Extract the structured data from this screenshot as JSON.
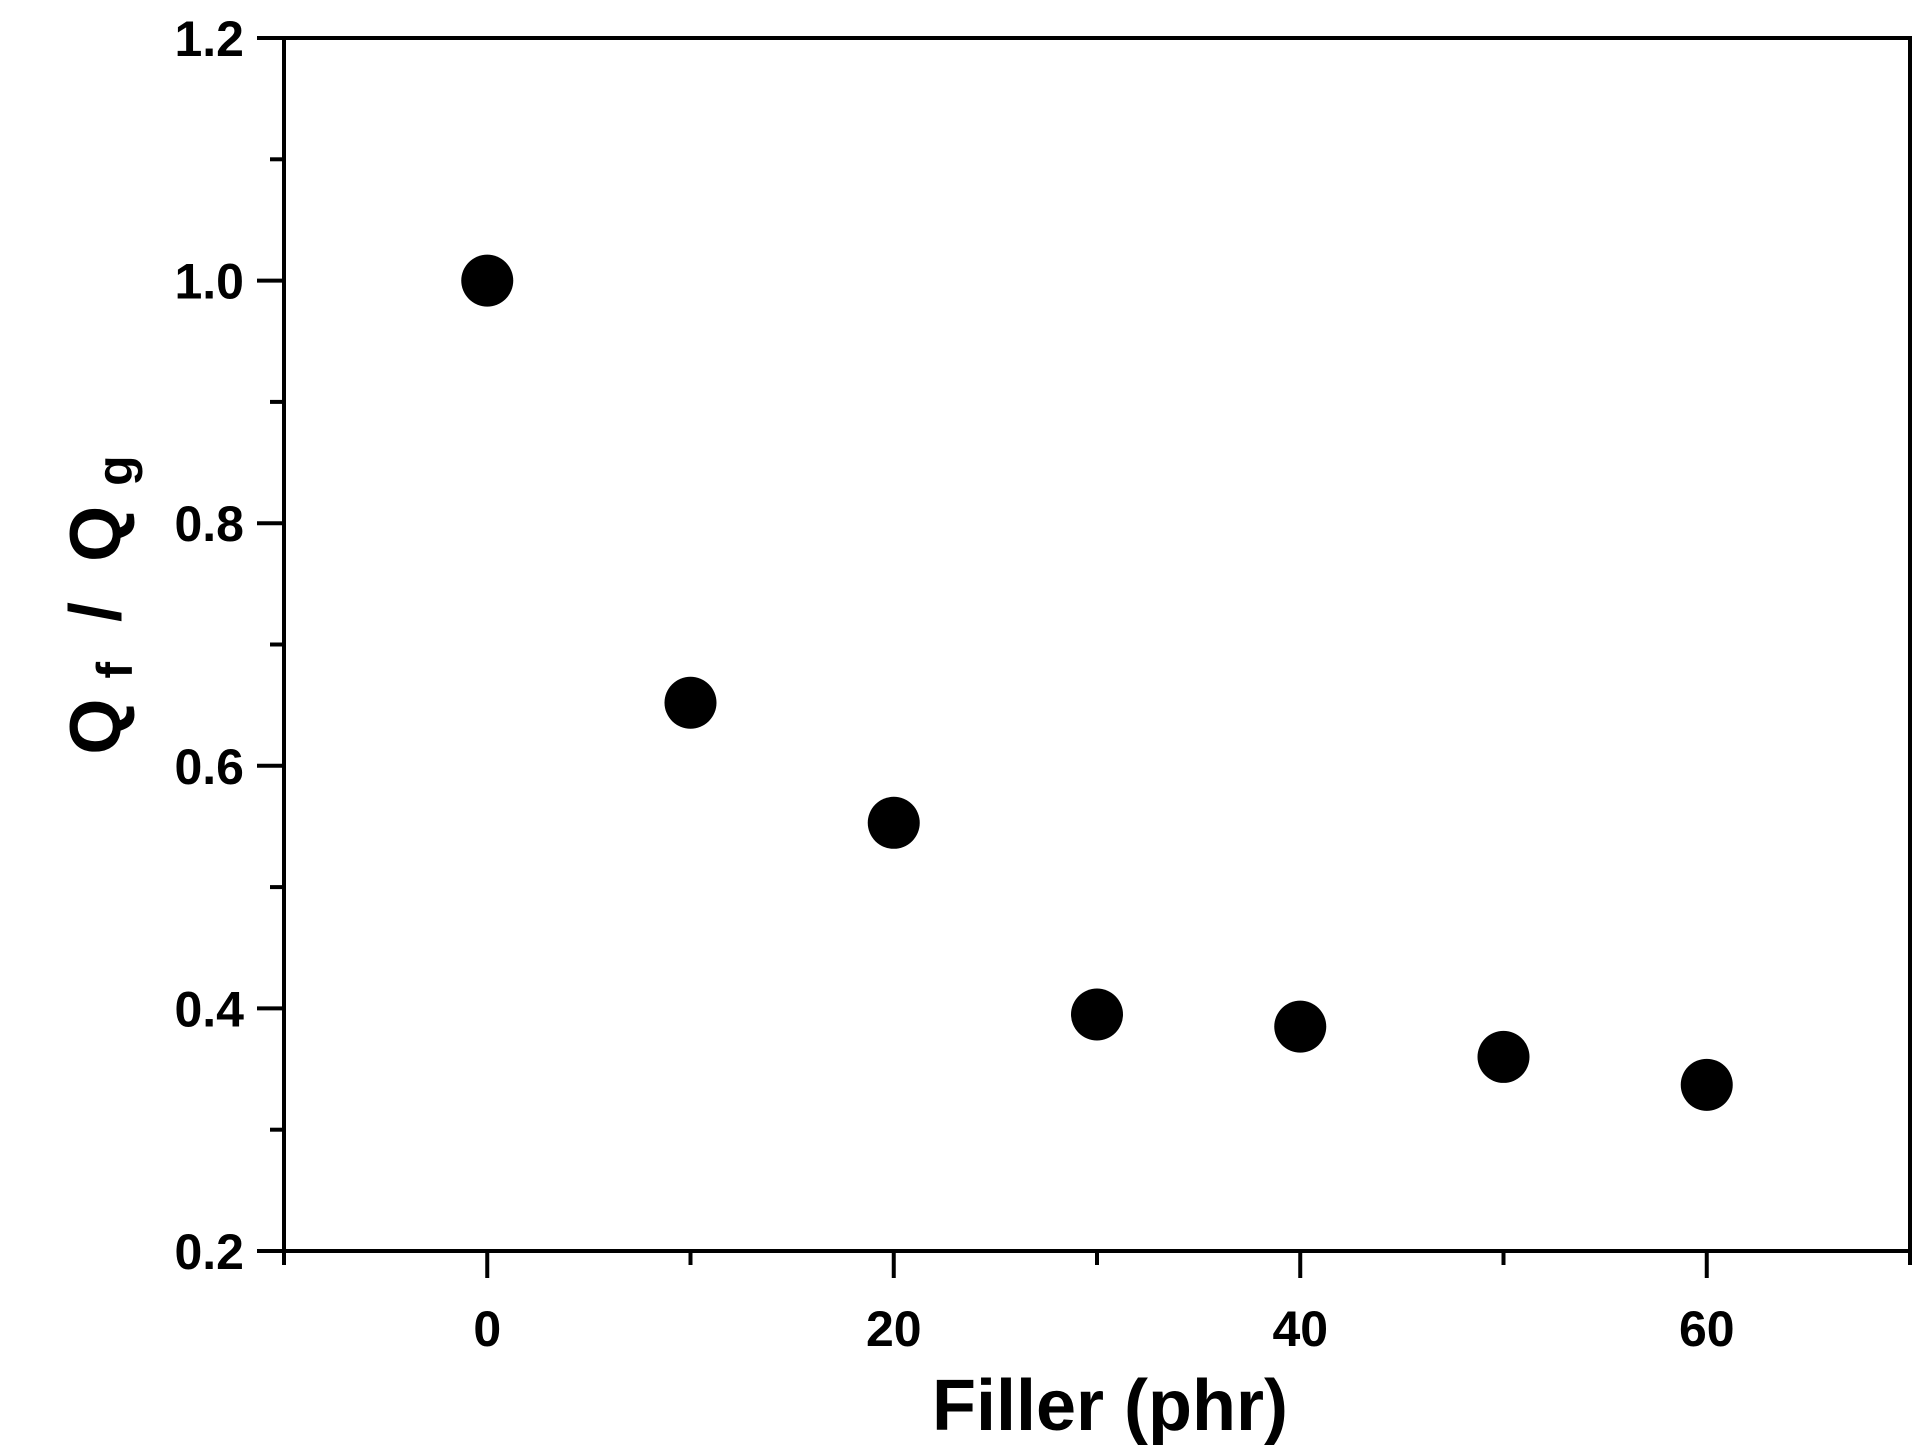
{
  "chart_data": {
    "type": "scatter",
    "title": "",
    "xlabel": "Filler (phr)",
    "ylabel": {
      "q1": "Q",
      "sub1": "f",
      "sep": " / ",
      "q2": "Q",
      "sub2": "g"
    },
    "xlim": [
      -10,
      70
    ],
    "ylim": [
      0.2,
      1.2
    ],
    "xticks": [
      0,
      20,
      40,
      60
    ],
    "xtick_labels": [
      "0",
      "20",
      "40",
      "60"
    ],
    "yticks": [
      0.2,
      0.4,
      0.6,
      0.8,
      1.0,
      1.2
    ],
    "ytick_labels": [
      "0.2",
      "0.4",
      "0.6",
      "0.8",
      "1.0",
      "1.2"
    ],
    "grid": false,
    "legend": "none",
    "series": [
      {
        "color": "#000000",
        "marker": "circle",
        "points": [
          {
            "x": 0,
            "y": 1.0
          },
          {
            "x": 10,
            "y": 0.652
          },
          {
            "x": 20,
            "y": 0.553
          },
          {
            "x": 30,
            "y": 0.395
          },
          {
            "x": 40,
            "y": 0.385
          },
          {
            "x": 50,
            "y": 0.36
          },
          {
            "x": 60,
            "y": 0.337
          }
        ]
      }
    ]
  }
}
